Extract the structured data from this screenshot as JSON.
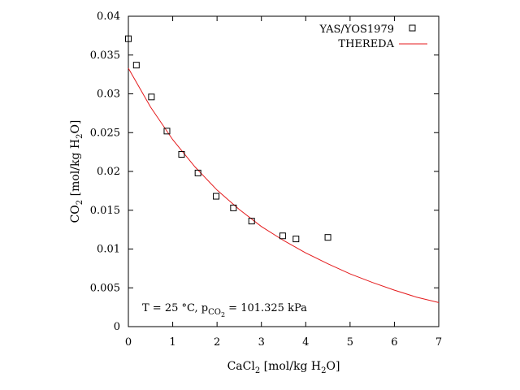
{
  "chart_data": {
    "type": "scatter",
    "xlabel": {
      "main": "CaCl",
      "sub": "2",
      "rest": " [mol/kg H",
      "sub2": "2",
      "tail": "O]"
    },
    "ylabel": {
      "main": "CO",
      "sub": "2",
      "rest": " [mol/kg H",
      "sub2": "2",
      "tail": "O]"
    },
    "xlim": [
      0,
      7
    ],
    "ylim": [
      0,
      0.04
    ],
    "x_ticks": [
      0,
      1,
      2,
      3,
      4,
      5,
      6,
      7
    ],
    "x_tick_labels": [
      "0",
      "1",
      "2",
      "3",
      "4",
      "5",
      "6",
      "7"
    ],
    "y_ticks": [
      0,
      0.005,
      0.01,
      0.015,
      0.02,
      0.025,
      0.03,
      0.035,
      0.04
    ],
    "y_tick_labels": [
      "0",
      "0.005",
      "0.01",
      "0.015",
      "0.02",
      "0.025",
      "0.03",
      "0.035",
      "0.04"
    ],
    "grid": false,
    "legend_position": "top-right",
    "series": [
      {
        "name": "YAS/YOS1979",
        "kind": "scatter",
        "marker": "open-square",
        "color": "#000000",
        "x": [
          0.0,
          0.18,
          0.52,
          0.87,
          1.2,
          1.57,
          1.98,
          2.37,
          2.78,
          3.48,
          3.78,
          4.5
        ],
        "y": [
          0.0371,
          0.0337,
          0.0296,
          0.0252,
          0.0222,
          0.0198,
          0.0168,
          0.0153,
          0.0136,
          0.0117,
          0.0113,
          0.0115
        ]
      },
      {
        "name": "THEREDA",
        "kind": "line",
        "color": "#e41a1c",
        "x": [
          0,
          0.5,
          1,
          1.5,
          2,
          2.5,
          3,
          3.5,
          4,
          4.5,
          5,
          5.5,
          6,
          6.5,
          7
        ],
        "y": [
          0.0333,
          0.0283,
          0.0241,
          0.0206,
          0.0176,
          0.0151,
          0.0129,
          0.0111,
          0.0095,
          0.0081,
          0.0068,
          0.0057,
          0.0047,
          0.0038,
          0.0031
        ]
      }
    ],
    "annotation": {
      "prefix": "T = 25 °C, p",
      "sub": "CO",
      "subsub": "2",
      "suffix": " = 101.325 kPa"
    }
  }
}
